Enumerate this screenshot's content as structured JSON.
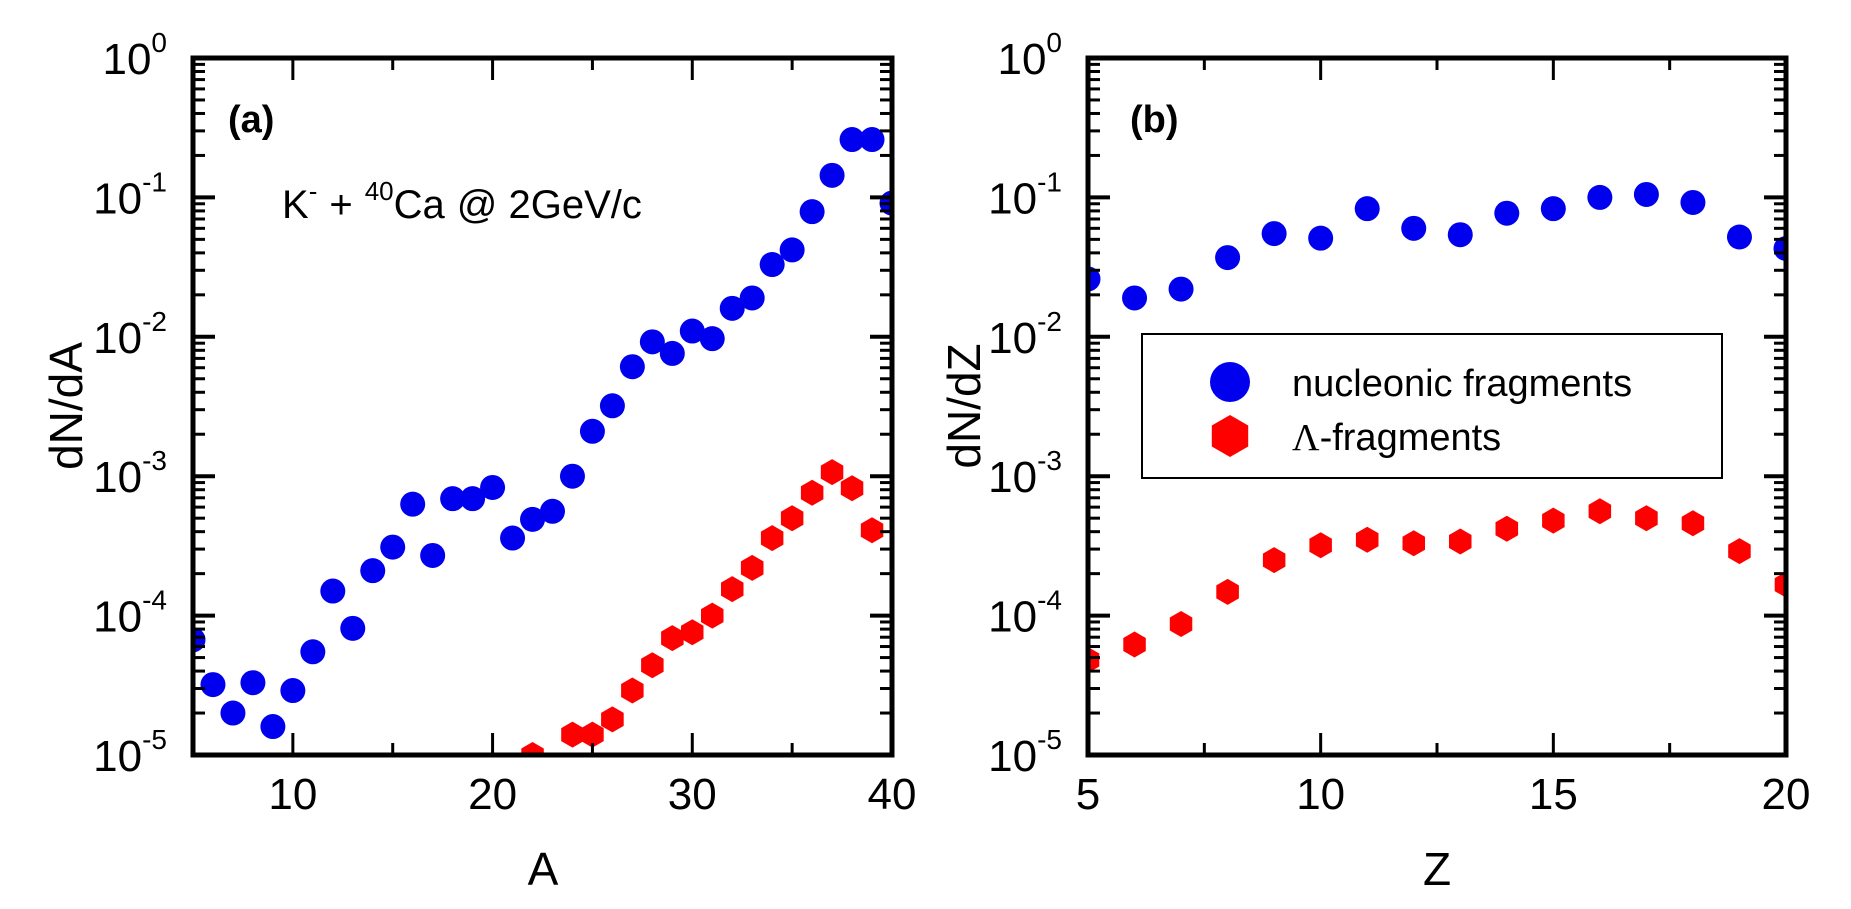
{
  "chart_data": [
    {
      "type": "scatter",
      "panel_label": "(a)",
      "annotation": {
        "projectile": "K",
        "projectile_sup": "-",
        "plus": "+",
        "target_mass": "40",
        "target": "Ca",
        "rest": "@ 2GeV/c"
      },
      "xlabel": "A",
      "ylabel": "dN/dA",
      "xlim": [
        5,
        40
      ],
      "ylim": [
        1e-05,
        1
      ],
      "yscale": "log",
      "xticks": [
        10,
        20,
        30,
        40
      ],
      "xtick_labels": [
        "10",
        "20",
        "30",
        "40"
      ],
      "yticks_exp": [
        0,
        -1,
        -2,
        -3,
        -4,
        -5
      ],
      "grid": false,
      "series": [
        {
          "name": "nucleonic fragments",
          "marker": "circle",
          "color": "#0000ee",
          "x": [
            5,
            6,
            7,
            8,
            9,
            10,
            11,
            12,
            13,
            14,
            15,
            16,
            17,
            18,
            19,
            20,
            21,
            22,
            23,
            24,
            25,
            26,
            27,
            28,
            29,
            30,
            31,
            32,
            33,
            34,
            35,
            36,
            37,
            38,
            39,
            40
          ],
          "y": [
            6.7e-05,
            3.2e-05,
            2e-05,
            3.3e-05,
            1.6e-05,
            2.9e-05,
            5.5e-05,
            0.00015,
            8.1e-05,
            0.00021,
            0.00031,
            0.00063,
            0.00027,
            0.00069,
            0.00069,
            0.00083,
            0.00036,
            0.00049,
            0.00056,
            0.001,
            0.0021,
            0.0032,
            0.0061,
            0.0092,
            0.0076,
            0.011,
            0.0097,
            0.016,
            0.019,
            0.033,
            0.042,
            0.079,
            0.144,
            0.26,
            0.26,
            0.091
          ]
        },
        {
          "name": "Λ-fragments",
          "marker": "hexagon",
          "color": "#ff0000",
          "x": [
            22,
            24,
            25,
            26,
            27,
            28,
            29,
            30,
            31,
            32,
            33,
            34,
            35,
            36,
            37,
            38,
            39
          ],
          "y": [
            1e-05,
            1.4e-05,
            1.4e-05,
            1.8e-05,
            2.9e-05,
            4.4e-05,
            6.9e-05,
            7.6e-05,
            0.0001,
            0.000155,
            0.00022,
            0.00036,
            0.0005,
            0.00076,
            0.00107,
            0.00082,
            0.00041
          ]
        }
      ]
    },
    {
      "type": "scatter",
      "panel_label": "(b)",
      "xlabel": "Z",
      "ylabel": "dN/dZ",
      "xlim": [
        5,
        20
      ],
      "ylim": [
        1e-05,
        1
      ],
      "yscale": "log",
      "xticks": [
        5,
        10,
        15,
        20
      ],
      "xtick_labels": [
        "5",
        "10",
        "15",
        "20"
      ],
      "yticks_exp": [
        0,
        -1,
        -2,
        -3,
        -4,
        -5
      ],
      "grid": false,
      "legend": {
        "placement": "center-right",
        "entries": [
          "nucleonic fragments",
          "Λ-fragments"
        ]
      },
      "series": [
        {
          "name": "nucleonic fragments",
          "marker": "circle",
          "color": "#0000ee",
          "x": [
            5,
            6,
            7,
            8,
            9,
            10,
            11,
            12,
            13,
            14,
            15,
            16,
            17,
            18,
            19,
            20
          ],
          "y": [
            0.026,
            0.019,
            0.022,
            0.037,
            0.055,
            0.051,
            0.083,
            0.06,
            0.054,
            0.077,
            0.083,
            0.1,
            0.105,
            0.092,
            0.052,
            0.043
          ]
        },
        {
          "name": "Λ-fragments",
          "marker": "hexagon",
          "color": "#ff0000",
          "x": [
            5,
            6,
            7,
            8,
            9,
            10,
            11,
            12,
            13,
            14,
            15,
            16,
            17,
            18,
            19,
            20
          ],
          "y": [
            4.8e-05,
            6.2e-05,
            8.7e-05,
            0.000148,
            0.00025,
            0.00032,
            0.00035,
            0.00033,
            0.00034,
            0.00042,
            0.00048,
            0.00056,
            0.0005,
            0.00046,
            0.00029,
            0.000167
          ]
        }
      ]
    }
  ],
  "legend": {
    "items": [
      {
        "label": "nucleonic fragments"
      },
      {
        "label": "-fragments",
        "prefix": "Λ"
      }
    ]
  }
}
